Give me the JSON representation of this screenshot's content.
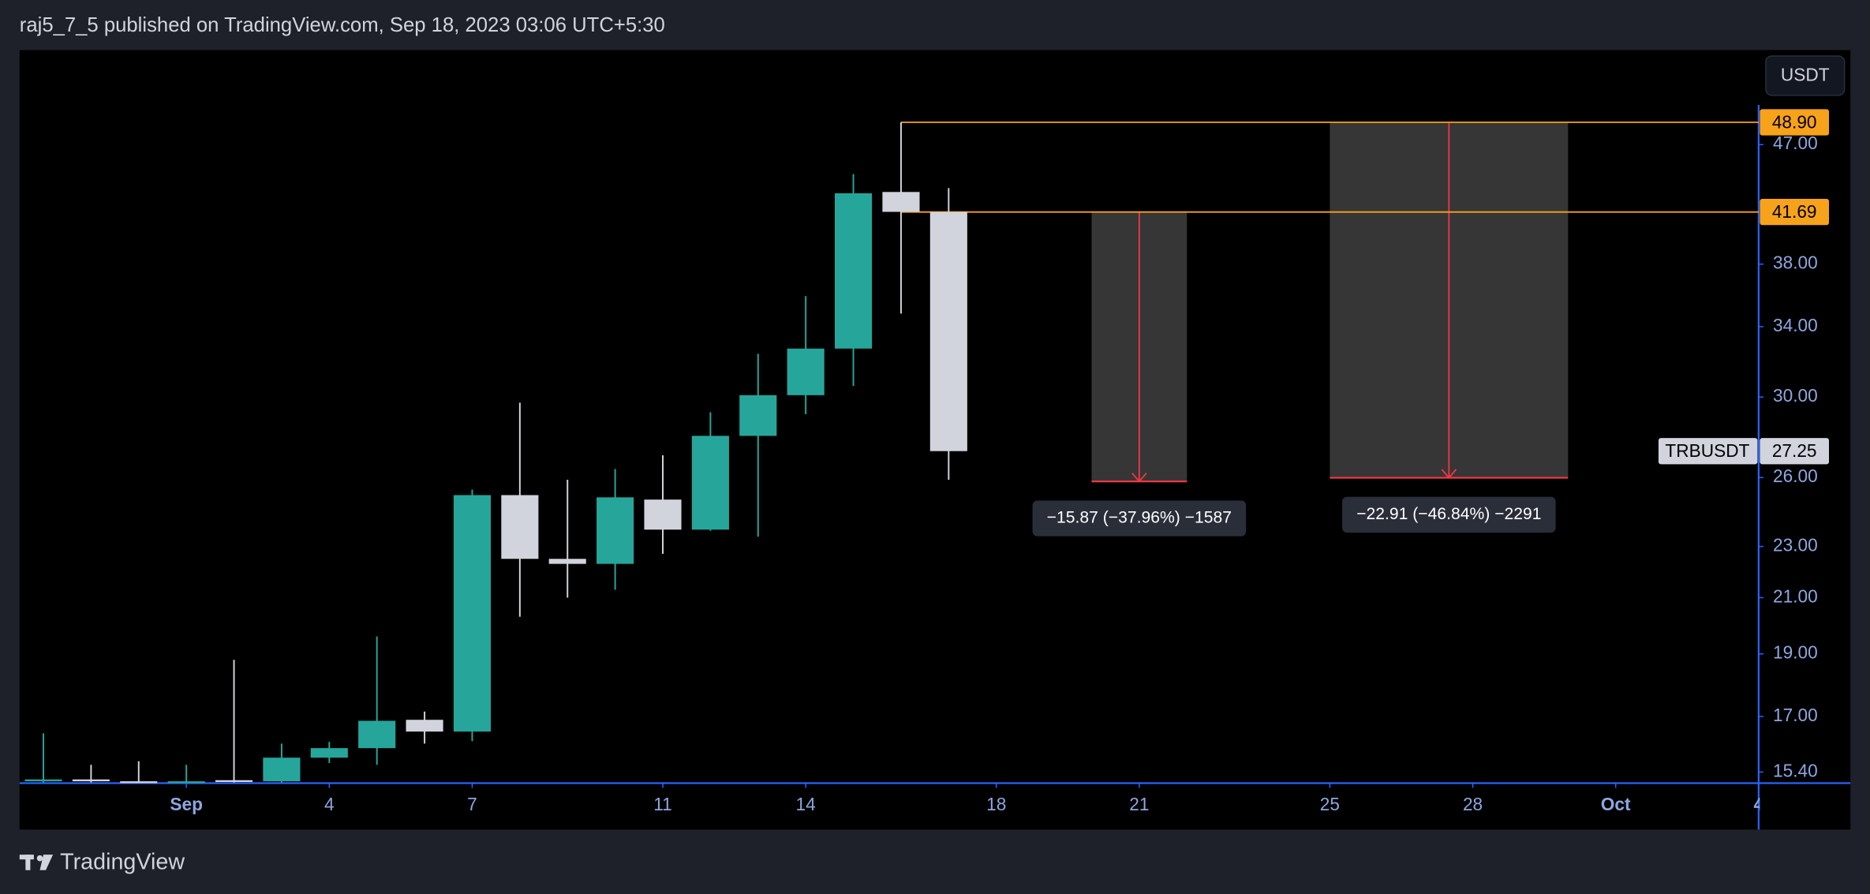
{
  "header": {
    "text": "raj5_7_5 published on TradingView.com, Sep 18, 2023 03:06 UTC+5:30"
  },
  "footer": {
    "brand": "TradingView"
  },
  "chart_data": {
    "type": "candlestick",
    "symbol": "TRBUSDT",
    "currency": "USDT",
    "log_scale": true,
    "grid": false,
    "up_color": "#26a69a",
    "down_color": "#d1d4dc",
    "x": [
      -2,
      -1,
      0,
      1,
      2,
      3,
      4,
      5,
      6,
      7,
      8,
      9,
      10,
      11,
      12,
      13,
      14,
      15,
      16,
      17
    ],
    "open": [
      15.15,
      15.2,
      15.15,
      15.14,
      15.18,
      15.15,
      15.8,
      16.07,
      16.9,
      16.55,
      25.2,
      22.5,
      22.3,
      25.0,
      23.7,
      28.0,
      30.1,
      32.7,
      43.2,
      41.69
    ],
    "high": [
      16.5,
      15.6,
      15.7,
      15.6,
      18.8,
      16.2,
      16.25,
      19.6,
      17.15,
      25.45,
      29.7,
      25.9,
      26.4,
      27.05,
      29.2,
      32.4,
      35.9,
      44.6,
      48.9,
      43.5
    ],
    "low": [
      15.12,
      15.12,
      15.12,
      15.12,
      15.12,
      15.12,
      15.65,
      15.6,
      16.2,
      16.27,
      20.3,
      21.0,
      21.3,
      22.7,
      23.65,
      23.4,
      29.1,
      30.6,
      34.8,
      25.9
    ],
    "close": [
      15.2,
      15.15,
      15.14,
      15.15,
      15.15,
      15.8,
      16.07,
      16.87,
      16.55,
      25.2,
      22.5,
      22.3,
      25.1,
      23.7,
      28.0,
      30.1,
      32.7,
      43.1,
      41.7,
      27.25
    ],
    "xlim": [
      -2.5,
      34
    ],
    "xticks": [
      {
        "value": 1,
        "label": "Sep"
      },
      4,
      7,
      11,
      14,
      18,
      21,
      25,
      28,
      {
        "value": 31,
        "label": "Oct"
      },
      {
        "value": 34,
        "label": "4"
      }
    ],
    "ylim": [
      15.1,
      55.6
    ],
    "yticks": [
      {
        "value": 15.4,
        "label": "15.40"
      },
      {
        "value": 17,
        "label": "17.00"
      },
      {
        "value": 19,
        "label": "19.00"
      },
      {
        "value": 21,
        "label": "21.00"
      },
      {
        "value": 23,
        "label": "23.00"
      },
      {
        "value": 26,
        "label": "26.00"
      },
      {
        "value": 30,
        "label": "30.00"
      },
      {
        "value": 34,
        "label": "34.00"
      },
      {
        "value": 38,
        "label": "38.00"
      },
      {
        "value": 47,
        "label": "47.00"
      }
    ],
    "last_price": 27.25,
    "hlines": [
      {
        "value": 48.9,
        "label": "48.90",
        "from_x": 16,
        "color": "#f7a21b"
      },
      {
        "value": 41.69,
        "label": "41.69",
        "from_x": 16,
        "color": "#f7a21b"
      }
    ],
    "measures": [
      {
        "x": [
          20,
          22
        ],
        "from": 41.69,
        "to": 25.82,
        "label": "−15.87 (−37.96%) −1587"
      },
      {
        "x": [
          25,
          30
        ],
        "from": 48.9,
        "to": 25.99,
        "label": "−22.91 (−46.84%) −2291"
      }
    ]
  }
}
